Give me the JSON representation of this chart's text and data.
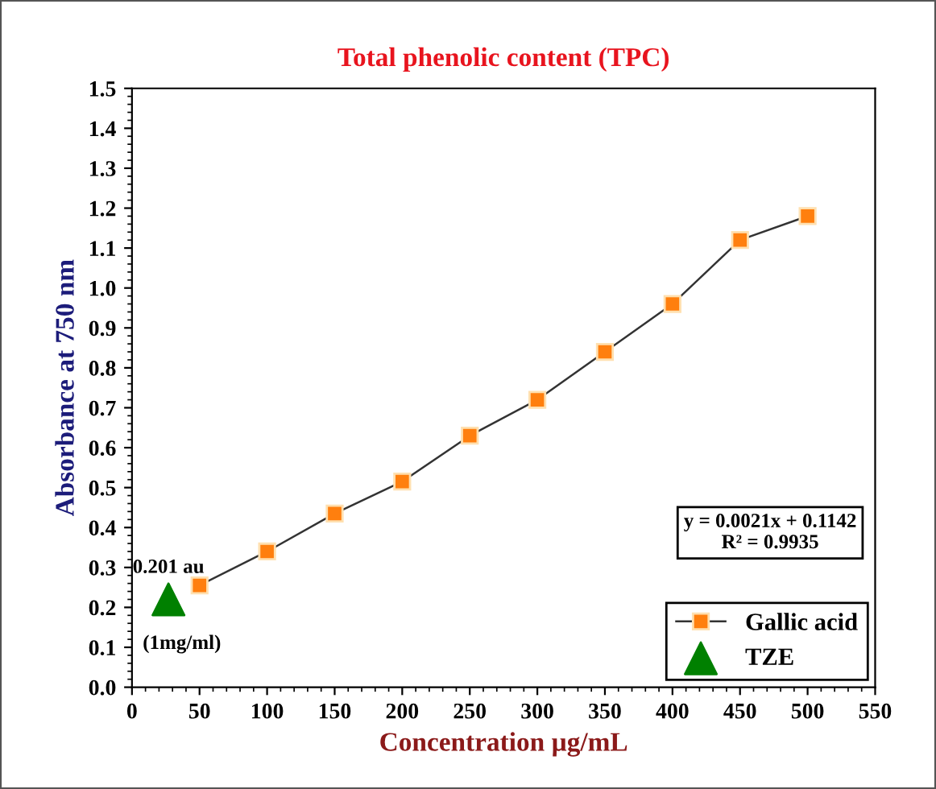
{
  "chart_data": {
    "type": "line",
    "title": "Total phenolic content (TPC)",
    "xlabel": "Concentration µg/mL",
    "ylabel": "Absorbance at 750 nm",
    "series": [
      {
        "name": "Gallic acid",
        "color": "#ff7f0e",
        "marker": "square",
        "line_style": "solid",
        "x": [
          50,
          100,
          150,
          200,
          250,
          300,
          350,
          400,
          450,
          500
        ],
        "values": [
          0.255,
          0.34,
          0.435,
          0.515,
          0.63,
          0.72,
          0.84,
          0.96,
          1.12,
          1.18
        ]
      },
      {
        "name": "TZE",
        "type": "scatter",
        "color": "#008000",
        "marker": "triangle",
        "x": [
          27
        ],
        "values": [
          0.22
        ]
      }
    ],
    "annotations": [
      {
        "text": "0.201 au",
        "x": 27,
        "y": 0.22
      },
      {
        "text": "(1mg/ml)",
        "x": 27,
        "y": 0.22
      },
      "y = 0.0021x + 0.1142\nR² = 0.9935"
    ],
    "xlim": [
      0,
      550
    ],
    "xticks": [
      0,
      50,
      100,
      150,
      200,
      250,
      300,
      350,
      400,
      450,
      500,
      550
    ],
    "ylim": [
      0,
      1.5
    ],
    "yticks": [
      "0.0",
      0.1,
      0.2,
      0.3,
      0.4,
      0.5,
      0.6,
      0.7,
      0.8,
      0.9,
      "1.0",
      1.1,
      1.2,
      1.3,
      1.4,
      1.5
    ],
    "grid": false,
    "legend": "bottom right"
  }
}
